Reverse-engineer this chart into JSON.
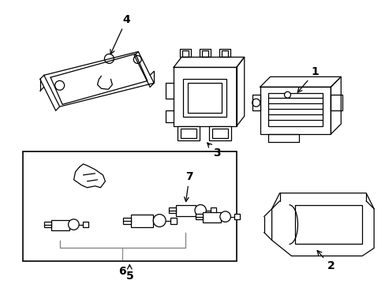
{
  "background_color": "#ffffff",
  "line_color": "#000000",
  "fig_width": 4.89,
  "fig_height": 3.6,
  "dpi": 100,
  "line_gray": "#888888"
}
